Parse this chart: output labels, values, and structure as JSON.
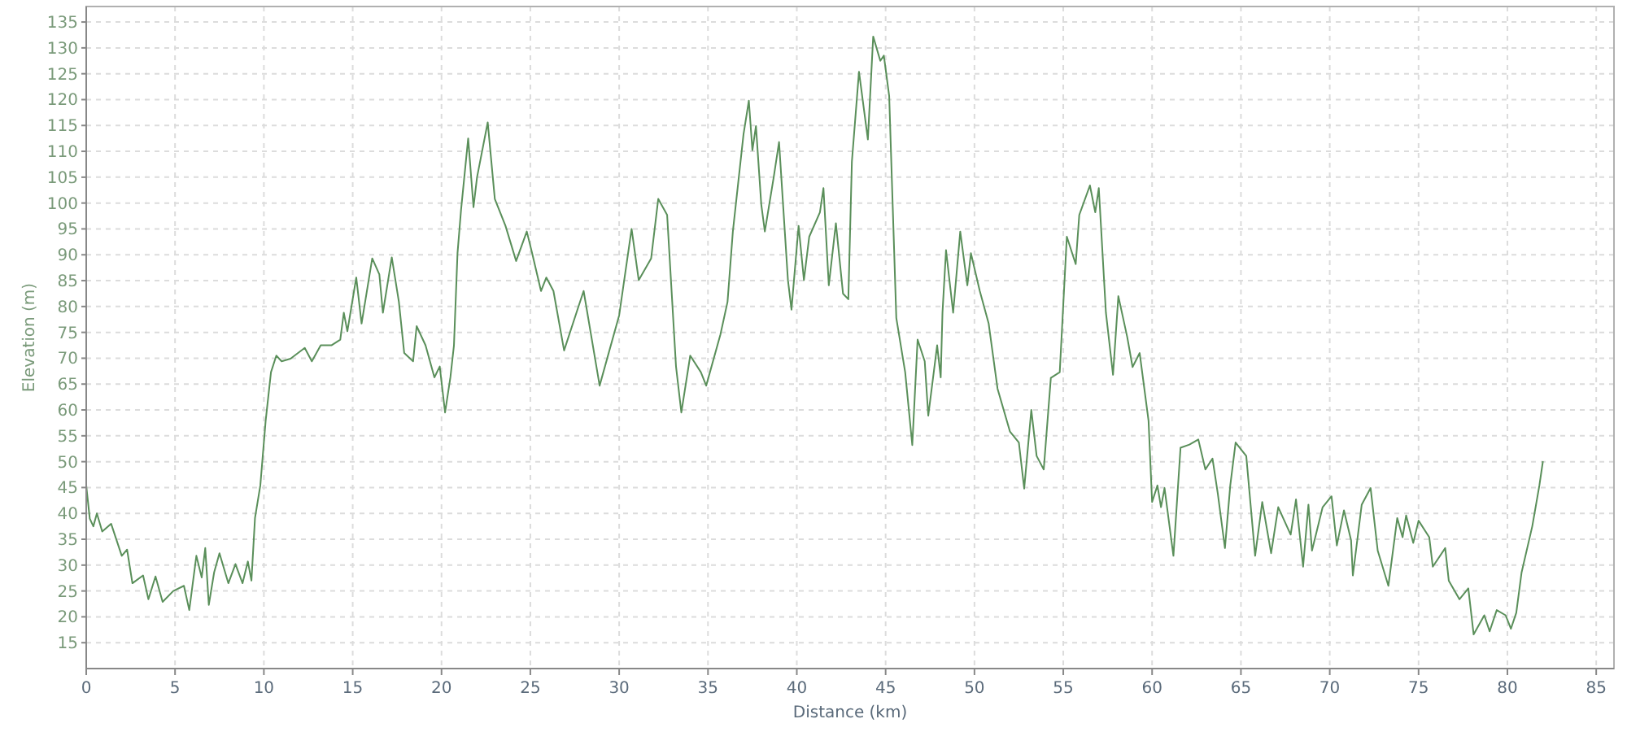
{
  "chart_data": {
    "type": "line",
    "xlabel": "Distance (km)",
    "ylabel": "Elevation (m)",
    "xlim": [
      0,
      86
    ],
    "xticks": [
      0,
      5,
      10,
      15,
      20,
      25,
      30,
      35,
      40,
      45,
      50,
      55,
      60,
      65,
      70,
      75,
      80,
      85
    ],
    "ylim": [
      10,
      138
    ],
    "yticks": [
      15,
      20,
      25,
      30,
      35,
      40,
      45,
      50,
      55,
      60,
      65,
      70,
      75,
      80,
      85,
      90,
      95,
      100,
      105,
      110,
      115,
      120,
      125,
      130,
      135
    ],
    "grid": true,
    "marker": "none",
    "line_style": "solid",
    "series": [
      {
        "color": "#5a8f5a",
        "x": [
          0,
          0.2,
          0.4,
          0.6,
          0.9,
          1.4,
          2.0,
          2.3,
          2.6,
          3.2,
          3.5,
          3.9,
          4.3,
          4.9,
          5.5,
          5.8,
          6.2,
          6.5,
          6.7,
          6.9,
          7.2,
          7.5,
          8.0,
          8.4,
          8.8,
          9.1,
          9.3,
          9.5,
          9.8,
          10.1,
          10.4,
          10.7,
          11.0,
          11.5,
          12.3,
          12.7,
          13.2,
          13.8,
          14.3,
          14.5,
          14.7,
          15.2,
          15.5,
          16.1,
          16.5,
          16.7,
          17.2,
          17.6,
          17.9,
          18.4,
          18.6,
          19.1,
          19.6,
          19.9,
          20.2,
          20.5,
          20.7,
          20.9,
          21.1,
          21.5,
          21.8,
          22.0,
          22.6,
          23.0,
          23.6,
          24.2,
          24.8,
          25.1,
          25.6,
          25.9,
          26.3,
          26.9,
          27.7,
          28.0,
          28.9,
          30.0,
          30.7,
          31.1,
          31.8,
          32.2,
          32.7,
          33.2,
          33.5,
          34.0,
          34.6,
          34.9,
          35.7,
          36.1,
          36.4,
          37.0,
          37.3,
          37.5,
          37.7,
          38.0,
          38.2,
          38.7,
          39.0,
          39.5,
          39.7,
          40.1,
          40.4,
          40.7,
          41.3,
          41.5,
          41.8,
          42.2,
          42.6,
          42.9,
          43.1,
          43.5,
          44.0,
          44.3,
          44.7,
          44.9,
          45.2,
          45.6,
          46.1,
          46.5,
          46.8,
          47.2,
          47.4,
          47.9,
          48.1,
          48.2,
          48.4,
          48.8,
          49.2,
          49.6,
          49.8,
          50.3,
          50.8,
          51.3,
          52.0,
          52.5,
          52.8,
          53.2,
          53.5,
          53.9,
          54.3,
          54.8,
          55.2,
          55.7,
          55.9,
          56.5,
          56.8,
          57.0,
          57.4,
          57.8,
          58.1,
          58.6,
          58.9,
          59.3,
          59.8,
          60.0,
          60.3,
          60.5,
          60.7,
          61.2,
          61.6,
          62.1,
          62.6,
          63.0,
          63.4,
          63.7,
          64.1,
          64.4,
          64.7,
          65.3,
          65.8,
          66.2,
          66.7,
          67.1,
          67.8,
          68.1,
          68.5,
          68.8,
          69.0,
          69.6,
          70.1,
          70.4,
          70.8,
          71.2,
          71.3,
          71.8,
          72.3,
          72.7,
          73.3,
          73.8,
          74.1,
          74.3,
          74.7,
          75.0,
          75.6,
          75.8,
          76.5,
          76.7,
          77.3,
          77.8,
          78.1,
          78.7,
          79.0,
          79.4,
          79.9,
          80.2,
          80.5,
          80.8,
          81.4,
          81.8,
          82.0
        ],
        "values": [
          45.4,
          39,
          37.5,
          40,
          36.5,
          38,
          31.8,
          33,
          26.5,
          28,
          23.4,
          27.8,
          22.9,
          25,
          26,
          21.3,
          31.8,
          27.6,
          33.3,
          22.3,
          28.6,
          32.3,
          26.5,
          30.2,
          26.5,
          30.7,
          27,
          39.1,
          45.4,
          57.9,
          67.3,
          70.5,
          69.4,
          69.9,
          72,
          69.4,
          72.5,
          72.5,
          73.6,
          78.8,
          75.2,
          85.6,
          76.7,
          89.3,
          86.2,
          78.8,
          89.5,
          80.9,
          71,
          69.4,
          76.2,
          72.5,
          66.3,
          68.4,
          59.5,
          66.3,
          72.5,
          90.3,
          98.7,
          112.5,
          99.2,
          105,
          115.6,
          100.8,
          95.6,
          88.8,
          94.5,
          90.3,
          83,
          85.6,
          83,
          71.5,
          79.9,
          83,
          64.7,
          78.3,
          95,
          85.1,
          89.3,
          100.8,
          97.7,
          68.4,
          59.5,
          70.5,
          67.3,
          64.7,
          74.6,
          80.9,
          94.5,
          113.3,
          119.8,
          110.2,
          114.9,
          99.7,
          94.5,
          105,
          111.8,
          85.1,
          79.4,
          95.6,
          85.1,
          93.5,
          98.2,
          102.9,
          84.1,
          96.1,
          82.5,
          81.4,
          108,
          125.4,
          112.3,
          132.2,
          127.5,
          128.5,
          120.7,
          77.8,
          67.3,
          53.2,
          73.6,
          69.4,
          58.9,
          72.5,
          66.3,
          78.8,
          90.9,
          78.8,
          94.5,
          84.1,
          90.3,
          83,
          76.7,
          64.1,
          55.8,
          53.7,
          44.8,
          60,
          51.1,
          48.5,
          66.2,
          67.3,
          93.5,
          88.2,
          97.7,
          103.4,
          98.2,
          102.9,
          78.8,
          66.8,
          82,
          74.1,
          68.3,
          71,
          57.9,
          42.2,
          45.4,
          41.2,
          44.9,
          31.8,
          52.7,
          53.3,
          54.3,
          48.5,
          50.6,
          43.8,
          33.3,
          45.4,
          53.7,
          51.1,
          31.8,
          42.2,
          32.3,
          41.2,
          35.9,
          42.7,
          29.7,
          41.7,
          32.8,
          41.2,
          43.3,
          33.8,
          40.6,
          34.8,
          28,
          41.7,
          44.9,
          32.8,
          26,
          39.1,
          35.4,
          39.6,
          34.3,
          38.6,
          35.4,
          29.7,
          33.3,
          27,
          23.4,
          25.5,
          16.6,
          20.3,
          17.2,
          21.3,
          20.3,
          17.7,
          20.8,
          28.6,
          37.5,
          45.4,
          50.1
        ]
      }
    ]
  }
}
